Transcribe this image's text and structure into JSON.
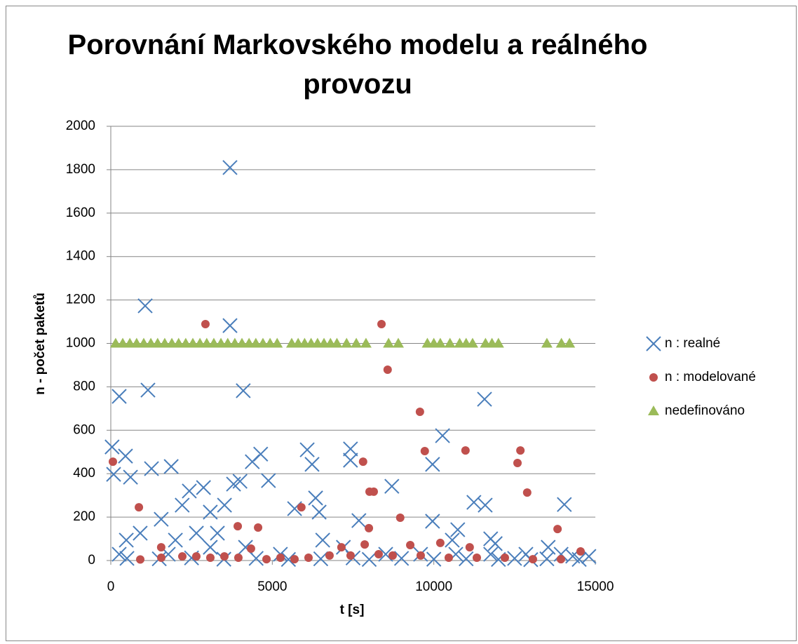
{
  "chart_data": {
    "type": "scatter",
    "title": "Porovnání Markovského modelu a reálného provozu",
    "xlabel": "t [s]",
    "ylabel": "n - počet paketů",
    "xlim": [
      0,
      15000
    ],
    "xticks": [
      0,
      5000,
      10000,
      15000
    ],
    "ylim": [
      0,
      2000
    ],
    "yticks": [
      0,
      200,
      400,
      600,
      800,
      1000,
      1200,
      1400,
      1600,
      1800,
      2000
    ],
    "grid": true,
    "legend": "right",
    "series": [
      {
        "name": "n : realné",
        "color": "#4a7ebb",
        "marker": "x",
        "x": [
          3690,
          1064,
          3690,
          1150,
          4100,
          260,
          11570,
          10270,
          40,
          6080,
          7420,
          4640,
          4380,
          4880,
          455,
          9960,
          6230,
          610,
          1260,
          1870,
          8700,
          3800,
          4000,
          87,
          7420,
          11240,
          11590,
          14040,
          9960,
          7680,
          10740,
          10570,
          11760,
          11900,
          13540,
          2430,
          2870,
          2210,
          3080,
          3300,
          2650,
          1560,
          2000,
          3520,
          910,
          480,
          260,
          1780,
          3080,
          4170,
          5250,
          5690,
          6340,
          6450,
          6560,
          7200,
          8510,
          9590,
          10680,
          11760,
          12850,
          13940,
          14800,
          500,
          1500,
          2500,
          3500,
          4500,
          5500,
          6500,
          7500,
          8000,
          9000,
          10000,
          11000,
          12000,
          12500,
          13000,
          13500,
          14500,
          14300
        ],
        "values": [
          1810,
          1173,
          1082,
          785,
          782,
          756,
          743,
          575,
          523,
          510,
          514,
          490,
          455,
          368,
          481,
          443,
          443,
          384,
          423,
          433,
          342,
          352,
          365,
          397,
          462,
          268,
          255,
          258,
          181,
          184,
          142,
          94,
          100,
          78,
          61,
          320,
          336,
          255,
          223,
          126,
          126,
          190,
          94,
          255,
          126,
          94,
          29,
          29,
          61,
          61,
          29,
          239,
          288,
          223,
          94,
          61,
          29,
          29,
          29,
          29,
          29,
          29,
          19,
          10,
          8,
          12,
          6,
          10,
          5,
          8,
          12,
          5,
          10,
          6,
          8,
          5,
          10,
          4,
          8,
          5,
          20
        ]
      },
      {
        "name": "n : modelované",
        "color": "#c0504d",
        "marker": "circle",
        "x": [
          2930,
          8380,
          8570,
          9570,
          9720,
          10980,
          12680,
          12590,
          65,
          7810,
          8010,
          8140,
          12890,
          8960,
          5900,
          870,
          7990,
          13830,
          4560,
          3930,
          9270,
          10200,
          11110,
          4340,
          7860,
          7140,
          1560,
          912,
          1563,
          2214,
          2648,
          3082,
          3516,
          3950,
          4820,
          5253,
          5687,
          6121,
          6772,
          7423,
          8292,
          8726,
          9594,
          10462,
          11331,
          12199,
          13067,
          13935,
          14543
        ],
        "values": [
          1089,
          1089,
          879,
          685,
          504,
          507,
          507,
          449,
          455,
          455,
          317,
          317,
          313,
          197,
          245,
          245,
          149,
          145,
          152,
          158,
          71,
          81,
          61,
          55,
          74,
          61,
          61,
          5,
          13,
          19,
          19,
          13,
          19,
          13,
          6,
          13,
          6,
          13,
          23,
          23,
          29,
          23,
          23,
          13,
          13,
          13,
          6,
          6,
          42
        ]
      },
      {
        "name": "nedefinováno",
        "color": "#9bbb59",
        "marker": "triangle",
        "x": [
          150,
          370,
          590,
          800,
          1020,
          1240,
          1450,
          1670,
          1890,
          2100,
          2320,
          2540,
          2760,
          2970,
          3190,
          3410,
          3620,
          3840,
          4060,
          4280,
          4490,
          4710,
          4930,
          5150,
          5600,
          5800,
          6000,
          6200,
          6400,
          6600,
          6800,
          7000,
          7300,
          7600,
          7900,
          8600,
          8900,
          9800,
          10000,
          10200,
          10500,
          10800,
          11000,
          11200,
          11600,
          11800,
          12000,
          13500,
          13950,
          14200
        ],
        "values": [
          1000,
          1000,
          1000,
          1000,
          1000,
          1000,
          1000,
          1000,
          1000,
          1000,
          1000,
          1000,
          1000,
          1000,
          1000,
          1000,
          1000,
          1000,
          1000,
          1000,
          1000,
          1000,
          1000,
          1000,
          1000,
          1000,
          1000,
          1000,
          1000,
          1000,
          1000,
          1000,
          1000,
          1000,
          1000,
          1000,
          1000,
          1000,
          1000,
          1000,
          1000,
          1000,
          1000,
          1000,
          1000,
          1000,
          1000,
          1000,
          1000,
          1000
        ]
      }
    ]
  }
}
